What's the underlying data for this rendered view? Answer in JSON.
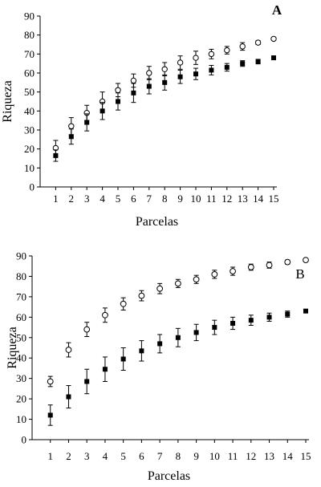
{
  "chart_data": [
    {
      "type": "scatter",
      "panel": "A",
      "xlabel": "Parcelas",
      "ylabel": "Riqueza",
      "xlim": [
        1,
        15
      ],
      "ylim": [
        0,
        90
      ],
      "yticks": [
        0,
        10,
        20,
        30,
        40,
        50,
        60,
        70,
        80,
        90
      ],
      "x": [
        1,
        2,
        3,
        4,
        5,
        6,
        7,
        8,
        9,
        10,
        11,
        12,
        13,
        14,
        15
      ],
      "series": [
        {
          "marker": "open-circle",
          "values": [
            20.5,
            32,
            39,
            45,
            51,
            56,
            60,
            62,
            65.5,
            68,
            70,
            72,
            74,
            76,
            78
          ],
          "err": [
            4,
            4.5,
            4,
            5,
            3.5,
            3.5,
            3.5,
            3.5,
            3.5,
            3.5,
            2.5,
            2,
            2,
            1,
            0
          ]
        },
        {
          "marker": "filled-square",
          "values": [
            16.5,
            26.5,
            34,
            40,
            45,
            49.5,
            53,
            55,
            58,
            59.5,
            61.5,
            63,
            65,
            66,
            68
          ],
          "err": [
            3,
            4,
            4.5,
            4.5,
            4.5,
            5,
            4,
            4,
            3.5,
            3,
            2.5,
            2,
            1.5,
            1.2,
            0
          ]
        }
      ]
    },
    {
      "type": "scatter",
      "panel": "B",
      "xlabel": "Parcelas",
      "ylabel": "Riqueza",
      "xlim": [
        1,
        15
      ],
      "ylim": [
        0,
        90
      ],
      "yticks": [
        0,
        10,
        20,
        30,
        40,
        50,
        60,
        70,
        80,
        90
      ],
      "x": [
        1,
        2,
        3,
        4,
        5,
        6,
        7,
        8,
        9,
        10,
        11,
        12,
        13,
        14,
        15
      ],
      "series": [
        {
          "marker": "open-circle",
          "values": [
            28.5,
            44,
            54,
            61,
            66.5,
            70.5,
            74,
            76.5,
            78.5,
            81,
            82.5,
            84.5,
            85.5,
            87,
            88
          ],
          "err": [
            2.5,
            3.5,
            3.5,
            3.5,
            3,
            2.5,
            2.5,
            2,
            2,
            2,
            2,
            1.5,
            1.5,
            1,
            0
          ]
        },
        {
          "marker": "filled-square",
          "values": [
            12,
            21,
            28.5,
            34.5,
            39.5,
            43.5,
            47,
            50,
            52.5,
            55,
            57,
            58.5,
            60,
            61.5,
            63
          ],
          "err": [
            5,
            5.5,
            6,
            6,
            5.5,
            5,
            4.5,
            4.5,
            4,
            3.5,
            3,
            2.5,
            2,
            1.5,
            0
          ]
        }
      ]
    }
  ]
}
